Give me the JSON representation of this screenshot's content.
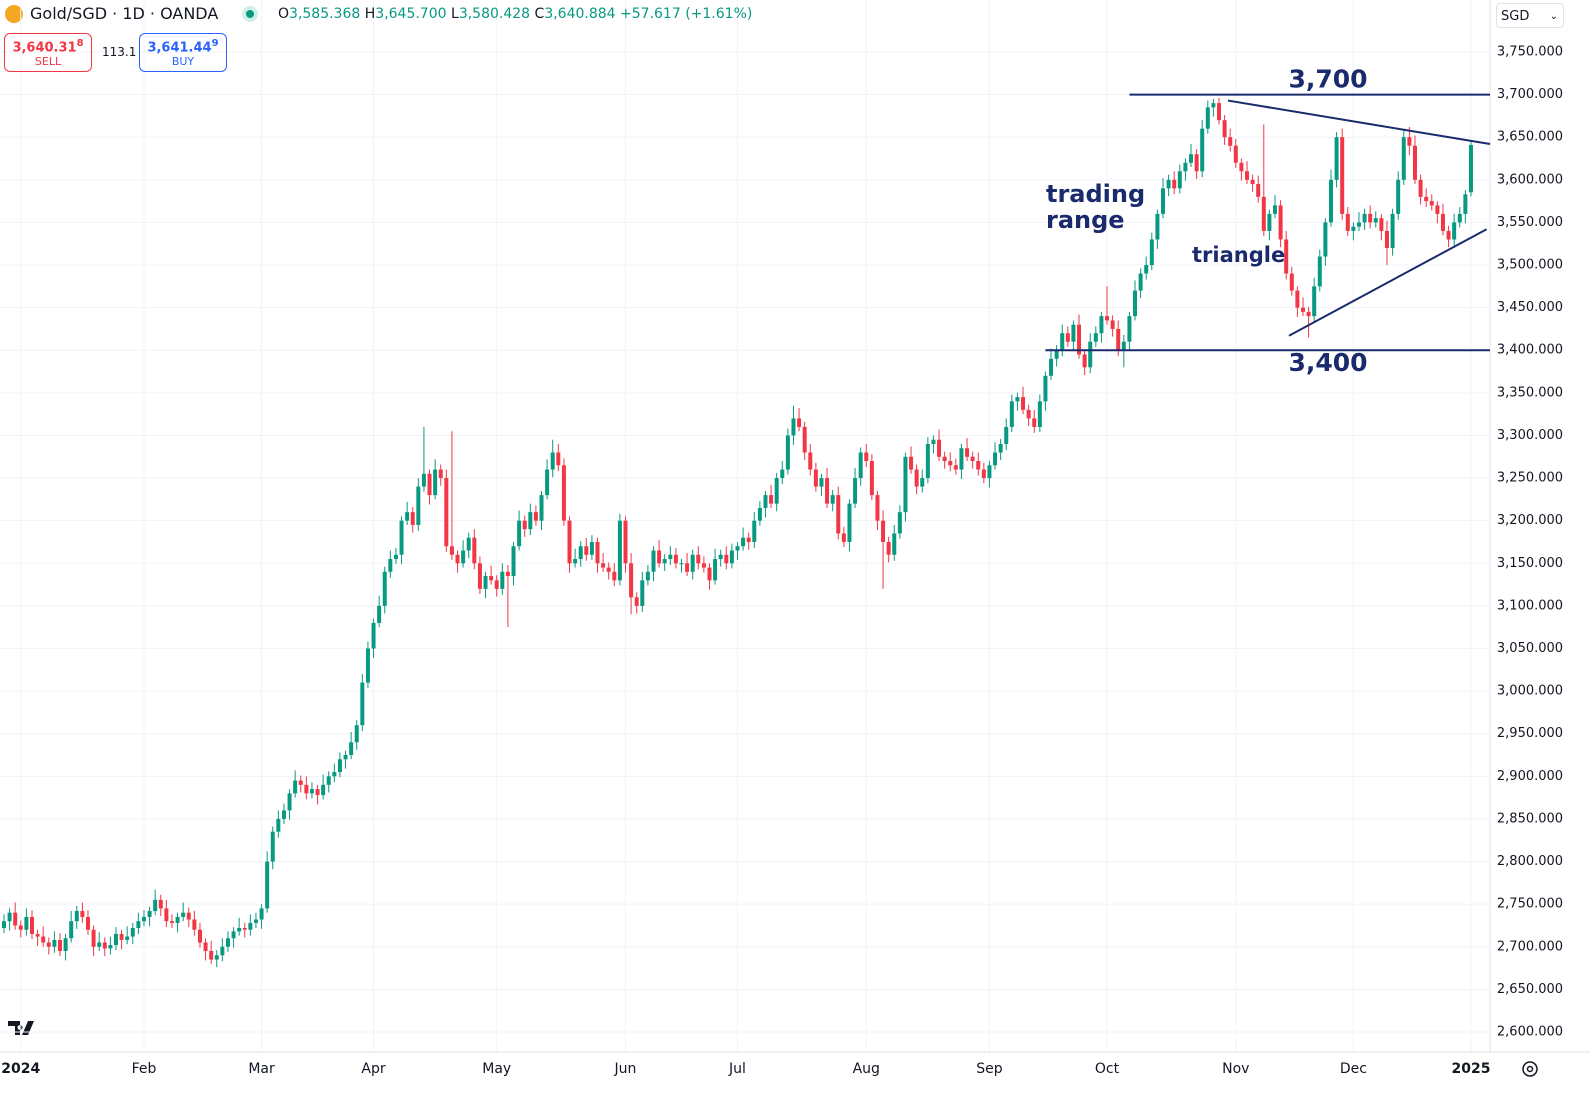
{
  "header": {
    "symbol": "Gold/SGD · 1D · OANDA",
    "ohlc": [
      {
        "label": "O",
        "value": "3,585.368"
      },
      {
        "label": "H",
        "value": "3,645.700"
      },
      {
        "label": "L",
        "value": "3,580.428"
      },
      {
        "label": "C",
        "value": "3,640.884"
      }
    ],
    "change": "+57.617 (+1.61%)",
    "sell": {
      "price": "3,640.31",
      "pip": "8",
      "label": "SELL"
    },
    "spread": "113.1",
    "buy": {
      "price": "3,641.44",
      "pip": "9",
      "label": "BUY"
    },
    "currency": "SGD"
  },
  "chart_data": {
    "type": "candlestick",
    "up_color": "#089981",
    "down_color": "#f23645",
    "grid": true,
    "open": [
      2722,
      2730,
      2740,
      2725,
      2720,
      2735,
      2715,
      2712,
      2705,
      2700,
      2708,
      2695,
      2710,
      2730,
      2742,
      2735,
      2720,
      2700,
      2705,
      2698,
      2702,
      2715,
      2708,
      2712,
      2722,
      2730,
      2735,
      2742,
      2755,
      2745,
      2730,
      2728,
      2735,
      2740,
      2732,
      2720,
      2705,
      2695,
      2685,
      2690,
      2700,
      2710,
      2718,
      2722,
      2720,
      2728,
      2732,
      2745,
      2800,
      2835,
      2850,
      2860,
      2880,
      2895,
      2890,
      2880,
      2885,
      2878,
      2890,
      2900,
      2905,
      2920,
      2925,
      2940,
      2960,
      3010,
      3050,
      3080,
      3100,
      3140,
      3155,
      3160,
      3200,
      3210,
      3195,
      3240,
      3255,
      3230,
      3260,
      3250,
      3170,
      3160,
      3150,
      3165,
      3180,
      3150,
      3120,
      3135,
      3130,
      3120,
      3140,
      3135,
      3170,
      3200,
      3190,
      3210,
      3200,
      3230,
      3260,
      3280,
      3265,
      3200,
      3150,
      3155,
      3170,
      3160,
      3175,
      3150,
      3145,
      3140,
      3130,
      3200,
      3150,
      3110,
      3100,
      3130,
      3140,
      3165,
      3150,
      3155,
      3160,
      3150,
      3150,
      3140,
      3160,
      3150,
      3145,
      3130,
      3155,
      3160,
      3150,
      3165,
      3170,
      3180,
      3175,
      3200,
      3215,
      3230,
      3220,
      3250,
      3260,
      3300,
      3320,
      3310,
      3280,
      3260,
      3240,
      3250,
      3220,
      3230,
      3185,
      3175,
      3220,
      3250,
      3280,
      3270,
      3230,
      3200,
      3175,
      3160,
      3185,
      3210,
      3275,
      3260,
      3240,
      3250,
      3290,
      3295,
      3275,
      3270,
      3265,
      3260,
      3285,
      3275,
      3270,
      3260,
      3250,
      3265,
      3280,
      3290,
      3310,
      3340,
      3345,
      3330,
      3320,
      3310,
      3340,
      3370,
      3390,
      3400,
      3420,
      3410,
      3430,
      3395,
      3380,
      3410,
      3420,
      3440,
      3435,
      3425,
      3400,
      3410,
      3440,
      3470,
      3490,
      3500,
      3530,
      3560,
      3590,
      3600,
      3590,
      3610,
      3620,
      3630,
      3610,
      3660,
      3685,
      3690,
      3670,
      3650,
      3640,
      3620,
      3610,
      3600,
      3595,
      3580,
      3540,
      3560,
      3570,
      3530,
      3490,
      3470,
      3450,
      3445,
      3440,
      3475,
      3510,
      3550,
      3600,
      3650,
      3560,
      3540,
      3545,
      3550,
      3560,
      3550,
      3555,
      3540,
      3520,
      3560,
      3600,
      3650,
      3640,
      3600,
      3580,
      3575,
      3570,
      3560,
      3540,
      3530,
      3550,
      3560,
      3585.368
    ],
    "high": [
      2738,
      2745,
      2752,
      2731,
      2745,
      2743,
      2720,
      2724,
      2711,
      2718,
      2716,
      2715,
      2742,
      2748,
      2752,
      2743,
      2725,
      2717,
      2711,
      2712,
      2723,
      2720,
      2724,
      2728,
      2740,
      2743,
      2747,
      2767,
      2761,
      2755,
      2738,
      2740,
      2752,
      2746,
      2742,
      2728,
      2710,
      2707,
      2696,
      2710,
      2718,
      2723,
      2734,
      2728,
      2738,
      2740,
      2750,
      2812,
      2841,
      2860,
      2868,
      2885,
      2907,
      2901,
      2900,
      2893,
      2890,
      2902,
      2906,
      2915,
      2928,
      2930,
      2952,
      2966,
      3020,
      3058,
      3085,
      3112,
      3146,
      3165,
      3168,
      3205,
      3222,
      3216,
      3250,
      3310,
      3260,
      3272,
      3266,
      3260,
      3305,
      3165,
      3177,
      3186,
      3190,
      3158,
      3140,
      3147,
      3136,
      3150,
      3148,
      3175,
      3212,
      3206,
      3220,
      3218,
      3235,
      3272,
      3295,
      3290,
      3273,
      3205,
      3167,
      3176,
      3180,
      3183,
      3180,
      3162,
      3151,
      3150,
      3208,
      3205,
      3162,
      3116,
      3140,
      3148,
      3170,
      3177,
      3161,
      3170,
      3168,
      3155,
      3162,
      3166,
      3170,
      3158,
      3150,
      3167,
      3166,
      3170,
      3173,
      3175,
      3192,
      3186,
      3210,
      3223,
      3235,
      3242,
      3256,
      3270,
      3308,
      3335,
      3332,
      3316,
      3290,
      3268,
      3255,
      3262,
      3236,
      3240,
      3193,
      3225,
      3262,
      3286,
      3290,
      3278,
      3235,
      3212,
      3181,
      3195,
      3218,
      3280,
      3287,
      3266,
      3260,
      3298,
      3300,
      3307,
      3281,
      3280,
      3273,
      3290,
      3297,
      3281,
      3280,
      3268,
      3270,
      3292,
      3296,
      3320,
      3348,
      3350,
      3357,
      3336,
      3330,
      3348,
      3375,
      3402,
      3406,
      3430,
      3428,
      3435,
      3442,
      3401,
      3420,
      3428,
      3445,
      3475,
      3441,
      3435,
      3418,
      3445,
      3482,
      3496,
      3510,
      3538,
      3565,
      3602,
      3606,
      3610,
      3618,
      3625,
      3642,
      3636,
      3670,
      3693,
      3695,
      3696,
      3676,
      3660,
      3648,
      3625,
      3622,
      3606,
      3605,
      3665,
      3565,
      3582,
      3576,
      3540,
      3498,
      3475,
      3462,
      3451,
      3485,
      3518,
      3555,
      3612,
      3656,
      3660,
      3568,
      3550,
      3562,
      3566,
      3570,
      3563,
      3560,
      3552,
      3566,
      3610,
      3658,
      3662,
      3652,
      3606,
      3590,
      3583,
      3575,
      3572,
      3546,
      3560,
      3568,
      3588,
      3645.7
    ],
    "low": [
      2716,
      2719,
      2720,
      2711,
      2713,
      2709,
      2701,
      2700,
      2691,
      2693,
      2689,
      2684,
      2705,
      2721,
      2728,
      2714,
      2689,
      2695,
      2689,
      2691,
      2696,
      2697,
      2703,
      2703,
      2715,
      2724,
      2724,
      2737,
      2736,
      2723,
      2722,
      2717,
      2730,
      2723,
      2713,
      2699,
      2684,
      2680,
      2676,
      2683,
      2694,
      2699,
      2713,
      2711,
      2713,
      2722,
      2721,
      2740,
      2791,
      2828,
      2844,
      2849,
      2875,
      2881,
      2873,
      2874,
      2867,
      2873,
      2881,
      2893,
      2899,
      2909,
      2920,
      2931,
      2953,
      3004,
      3039,
      3075,
      3091,
      3133,
      3149,
      3149,
      3195,
      3186,
      3188,
      3234,
      3219,
      3225,
      3241,
      3163,
      3154,
      3139,
      3145,
      3156,
      3143,
      3114,
      3109,
      3125,
      3111,
      3113,
      3075,
      3124,
      3165,
      3181,
      3183,
      3194,
      3189,
      3225,
      3251,
      3258,
      3194,
      3139,
      3145,
      3146,
      3153,
      3154,
      3139,
      3140,
      3131,
      3123,
      3124,
      3139,
      3090,
      3091,
      3093,
      3124,
      3129,
      3145,
      3141,
      3148,
      3144,
      3139,
      3135,
      3131,
      3143,
      3139,
      3119,
      3125,
      3146,
      3143,
      3144,
      3154,
      3165,
      3166,
      3168,
      3194,
      3204,
      3215,
      3211,
      3243,
      3254,
      3289,
      3305,
      3271,
      3253,
      3234,
      3229,
      3215,
      3211,
      3178,
      3169,
      3164,
      3215,
      3241,
      3263,
      3224,
      3189,
      3120,
      3151,
      3153,
      3179,
      3199,
      3255,
      3231,
      3233,
      3244,
      3279,
      3270,
      3261,
      3258,
      3254,
      3249,
      3270,
      3261,
      3253,
      3244,
      3239,
      3260,
      3271,
      3283,
      3304,
      3329,
      3325,
      3311,
      3303,
      3304,
      3329,
      3365,
      3381,
      3393,
      3404,
      3399,
      3390,
      3371,
      3373,
      3404,
      3409,
      3430,
      3416,
      3393,
      3380,
      3399,
      3435,
      3461,
      3483,
      3494,
      3519,
      3555,
      3581,
      3583,
      3584,
      3599,
      3615,
      3601,
      3603,
      3654,
      3674,
      3665,
      3641,
      3633,
      3614,
      3599,
      3595,
      3586,
      3573,
      3534,
      3529,
      3555,
      3521,
      3483,
      3464,
      3439,
      3440,
      3415,
      3433,
      3469,
      3499,
      3545,
      3591,
      3553,
      3534,
      3529,
      3540,
      3541,
      3543,
      3544,
      3529,
      3500,
      3511,
      3553,
      3594,
      3629,
      3595,
      3571,
      3568,
      3564,
      3549,
      3535,
      3521,
      3523,
      3544,
      3549,
      3580.428
    ],
    "close": [
      2730,
      2740,
      2725,
      2720,
      2735,
      2715,
      2712,
      2705,
      2700,
      2708,
      2695,
      2710,
      2730,
      2742,
      2735,
      2720,
      2700,
      2705,
      2698,
      2702,
      2715,
      2708,
      2712,
      2722,
      2730,
      2735,
      2742,
      2755,
      2745,
      2730,
      2728,
      2735,
      2740,
      2732,
      2720,
      2705,
      2695,
      2685,
      2690,
      2700,
      2710,
      2718,
      2722,
      2720,
      2728,
      2732,
      2745,
      2800,
      2835,
      2850,
      2860,
      2880,
      2895,
      2890,
      2880,
      2885,
      2878,
      2890,
      2900,
      2905,
      2920,
      2925,
      2940,
      2960,
      3010,
      3050,
      3080,
      3100,
      3140,
      3155,
      3160,
      3200,
      3210,
      3195,
      3240,
      3255,
      3230,
      3260,
      3250,
      3170,
      3160,
      3150,
      3165,
      3180,
      3150,
      3120,
      3135,
      3130,
      3120,
      3140,
      3135,
      3170,
      3200,
      3190,
      3210,
      3200,
      3230,
      3260,
      3280,
      3265,
      3200,
      3150,
      3155,
      3170,
      3160,
      3175,
      3150,
      3145,
      3140,
      3130,
      3200,
      3150,
      3110,
      3100,
      3130,
      3140,
      3165,
      3150,
      3155,
      3160,
      3150,
      3150,
      3140,
      3160,
      3150,
      3145,
      3130,
      3155,
      3160,
      3150,
      3165,
      3170,
      3180,
      3175,
      3200,
      3215,
      3230,
      3220,
      3250,
      3260,
      3300,
      3320,
      3310,
      3280,
      3260,
      3240,
      3250,
      3220,
      3230,
      3185,
      3175,
      3220,
      3250,
      3280,
      3270,
      3230,
      3200,
      3175,
      3160,
      3185,
      3210,
      3275,
      3260,
      3240,
      3250,
      3290,
      3295,
      3275,
      3270,
      3265,
      3260,
      3285,
      3275,
      3270,
      3260,
      3250,
      3265,
      3280,
      3290,
      3310,
      3340,
      3345,
      3330,
      3320,
      3310,
      3340,
      3370,
      3390,
      3400,
      3420,
      3410,
      3430,
      3395,
      3380,
      3410,
      3420,
      3440,
      3435,
      3425,
      3400,
      3410,
      3440,
      3470,
      3490,
      3500,
      3530,
      3560,
      3590,
      3600,
      3590,
      3610,
      3620,
      3630,
      3610,
      3660,
      3685,
      3690,
      3670,
      3650,
      3640,
      3620,
      3610,
      3600,
      3595,
      3580,
      3540,
      3560,
      3570,
      3530,
      3490,
      3470,
      3450,
      3445,
      3440,
      3475,
      3510,
      3550,
      3600,
      3650,
      3560,
      3540,
      3545,
      3550,
      3560,
      3550,
      3555,
      3540,
      3520,
      3560,
      3600,
      3650,
      3640,
      3600,
      3580,
      3575,
      3570,
      3560,
      3540,
      3530,
      3550,
      3560,
      3583,
      3640.884
    ],
    "ylim": [
      2576.5,
      3811
    ],
    "yticks": [
      {
        "value": 2600,
        "label": "2,600.000"
      },
      {
        "value": 2650,
        "label": "2,650.000"
      },
      {
        "value": 2700,
        "label": "2,700.000"
      },
      {
        "value": 2750,
        "label": "2,750.000"
      },
      {
        "value": 2800,
        "label": "2,800.000"
      },
      {
        "value": 2850,
        "label": "2,850.000"
      },
      {
        "value": 2900,
        "label": "2,900.000"
      },
      {
        "value": 2950,
        "label": "2,950.000"
      },
      {
        "value": 3000,
        "label": "3,000.000"
      },
      {
        "value": 3050,
        "label": "3,050.000"
      },
      {
        "value": 3100,
        "label": "3,100.000"
      },
      {
        "value": 3150,
        "label": "3,150.000"
      },
      {
        "value": 3200,
        "label": "3,200.000"
      },
      {
        "value": 3250,
        "label": "3,250.000"
      },
      {
        "value": 3300,
        "label": "3,300.000"
      },
      {
        "value": 3350,
        "label": "3,350.000"
      },
      {
        "value": 3400,
        "label": "3,400.000"
      },
      {
        "value": 3450,
        "label": "3,450.000"
      },
      {
        "value": 3500,
        "label": "3,500.000"
      },
      {
        "value": 3550,
        "label": "3,550.000"
      },
      {
        "value": 3600,
        "label": "3,600.000"
      },
      {
        "value": 3650,
        "label": "3,650.000"
      },
      {
        "value": 3700,
        "label": "3,700.000"
      },
      {
        "value": 3750,
        "label": "3,750.000"
      }
    ],
    "xlim": [
      -0.714,
      265.4
    ],
    "xticks": [
      {
        "value": 3,
        "label": "2024"
      },
      {
        "value": 25,
        "label": "Feb"
      },
      {
        "value": 46,
        "label": "Mar"
      },
      {
        "value": 66,
        "label": "Apr"
      },
      {
        "value": 88,
        "label": "May"
      },
      {
        "value": 111,
        "label": "Jun"
      },
      {
        "value": 131,
        "label": "Jul"
      },
      {
        "value": 154,
        "label": "Aug"
      },
      {
        "value": 176,
        "label": "Sep"
      },
      {
        "value": 197,
        "label": "Oct"
      },
      {
        "value": 220,
        "label": "Nov"
      },
      {
        "value": 241,
        "label": "Dec"
      },
      {
        "value": 262,
        "label": "2025"
      }
    ],
    "annotations": {
      "hlines": [
        {
          "label": "3,700",
          "value": 3700,
          "start": 201
        },
        {
          "label": "3,400",
          "value": 3400,
          "start": 186
        }
      ],
      "trendlines": [
        {
          "from": [
            218.6,
            3693
          ],
          "to": [
            265.4,
            3642
          ]
        },
        {
          "from": [
            229.5,
            3417
          ],
          "to": [
            264.8,
            3542
          ]
        }
      ],
      "notes": [
        [
          "trading",
          "range"
        ],
        [
          "triangle"
        ]
      ]
    }
  }
}
